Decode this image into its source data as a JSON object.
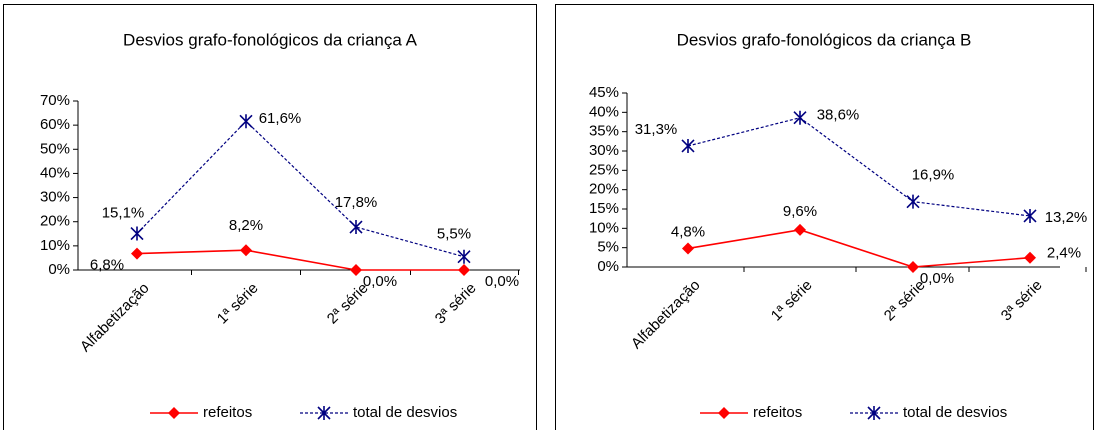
{
  "chart_data": [
    {
      "type": "line",
      "title": "Desvios grafo-fonológicos da criança A",
      "categories": [
        "Alfabetização",
        "1ª série",
        "2ª série",
        "3ª série"
      ],
      "series": [
        {
          "name": "refeitos",
          "color": "#ff0000",
          "values": [
            6.8,
            8.2,
            0.0,
            0.0
          ],
          "value_labels": [
            "6,8%",
            "8,2%",
            "0,0%",
            "0,0%"
          ]
        },
        {
          "name": "total de desvios",
          "color": "#000080",
          "values": [
            15.1,
            61.6,
            17.8,
            5.5
          ],
          "value_labels": [
            "15,1%",
            "61,6%",
            "17,8%",
            "5,5%"
          ]
        }
      ],
      "ylim": [
        0,
        70
      ],
      "yticks": [
        {
          "value": 0,
          "label": "0%"
        },
        {
          "value": 10,
          "label": "10%"
        },
        {
          "value": 20,
          "label": "20%"
        },
        {
          "value": 30,
          "label": "30%"
        },
        {
          "value": 40,
          "label": "40%"
        },
        {
          "value": 50,
          "label": "50%"
        },
        {
          "value": 60,
          "label": "60%"
        },
        {
          "value": 70,
          "label": "70%"
        }
      ],
      "legend": "bottom"
    },
    {
      "type": "line",
      "title": "Desvios grafo-fonológicos  da criança B",
      "categories": [
        "Alfabetização",
        "1ª série",
        "2ª série",
        "3ª série"
      ],
      "series": [
        {
          "name": "refeitos",
          "color": "#ff0000",
          "values": [
            4.8,
            9.6,
            0.0,
            2.4
          ],
          "value_labels": [
            "4,8%",
            "9,6%",
            "0,0%",
            "2,4%"
          ]
        },
        {
          "name": "total de desvios",
          "color": "#000080",
          "values": [
            31.3,
            38.6,
            16.9,
            13.2
          ],
          "value_labels": [
            "31,3%",
            "38,6%",
            "16,9%",
            "13,2%"
          ]
        }
      ],
      "ylim": [
        0,
        45
      ],
      "yticks": [
        {
          "value": 0,
          "label": "0%"
        },
        {
          "value": 5,
          "label": "5%"
        },
        {
          "value": 10,
          "label": "10%"
        },
        {
          "value": 15,
          "label": "15%"
        },
        {
          "value": 20,
          "label": "20%"
        },
        {
          "value": 25,
          "label": "25%"
        },
        {
          "value": 30,
          "label": "30%"
        },
        {
          "value": 35,
          "label": "35%"
        },
        {
          "value": 40,
          "label": "40%"
        },
        {
          "value": 45,
          "label": "45%"
        }
      ],
      "legend": "bottom"
    }
  ]
}
